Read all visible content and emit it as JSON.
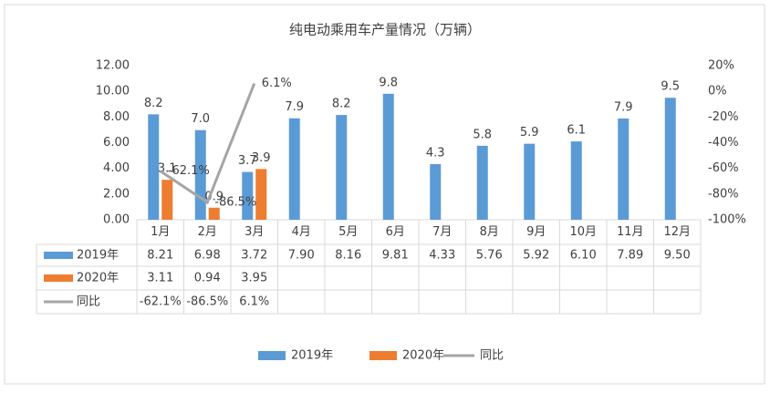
{
  "chart_data": {
    "type": "bar",
    "title": "纯电动乘用车产量情况（万辆）",
    "categories": [
      "1月",
      "2月",
      "3月",
      "4月",
      "5月",
      "6月",
      "7月",
      "8月",
      "9月",
      "10月",
      "11月",
      "12月"
    ],
    "series": [
      {
        "name": "2019年",
        "color": "#5b9bd5",
        "values": [
          8.21,
          6.98,
          3.72,
          7.9,
          8.16,
          9.81,
          4.33,
          5.76,
          5.92,
          6.1,
          7.89,
          9.5
        ],
        "value_labels": [
          "8.2",
          "7.0",
          "3.7",
          "7.9",
          "8.2",
          "9.8",
          "4.3",
          "5.8",
          "5.9",
          "6.1",
          "7.9",
          "9.5"
        ],
        "table_labels": [
          "8.21",
          "6.98",
          "3.72",
          "7.90",
          "8.16",
          "9.81",
          "4.33",
          "5.76",
          "5.92",
          "6.10",
          "7.89",
          "9.50"
        ]
      },
      {
        "name": "2020年",
        "color": "#ed7d31",
        "values": [
          3.11,
          0.94,
          3.95,
          null,
          null,
          null,
          null,
          null,
          null,
          null,
          null,
          null
        ],
        "value_labels": [
          "3.1",
          "0.9",
          "3.9",
          null,
          null,
          null,
          null,
          null,
          null,
          null,
          null,
          null
        ],
        "table_labels": [
          "3.11",
          "0.94",
          "3.95",
          null,
          null,
          null,
          null,
          null,
          null,
          null,
          null,
          null
        ]
      },
      {
        "name": "同比",
        "type": "line",
        "axis": "y2",
        "color": "#a5a5a5",
        "values": [
          -62.1,
          -86.5,
          6.1,
          null,
          null,
          null,
          null,
          null,
          null,
          null,
          null,
          null
        ],
        "value_labels": [
          "-62.1%",
          "-86.5%",
          "6.1%",
          null,
          null,
          null,
          null,
          null,
          null,
          null,
          null,
          null
        ]
      }
    ],
    "ylim": [
      0,
      12
    ],
    "yticks": [
      {
        "value": 0,
        "label": "0.00"
      },
      {
        "value": 2,
        "label": "2.00"
      },
      {
        "value": 4,
        "label": "4.00"
      },
      {
        "value": 6,
        "label": "6.00"
      },
      {
        "value": 8,
        "label": "8.00"
      },
      {
        "value": 10,
        "label": "10.00"
      },
      {
        "value": 12,
        "label": "12.00"
      }
    ],
    "y2lim": [
      -100,
      20
    ],
    "y2ticks": [
      {
        "value": -100,
        "label": "-100%"
      },
      {
        "value": -80,
        "label": "-80%"
      },
      {
        "value": -60,
        "label": "-60%"
      },
      {
        "value": -40,
        "label": "-40%"
      },
      {
        "value": -20,
        "label": "-20%"
      },
      {
        "value": 0,
        "label": "0%"
      },
      {
        "value": 20,
        "label": "20%"
      }
    ]
  }
}
